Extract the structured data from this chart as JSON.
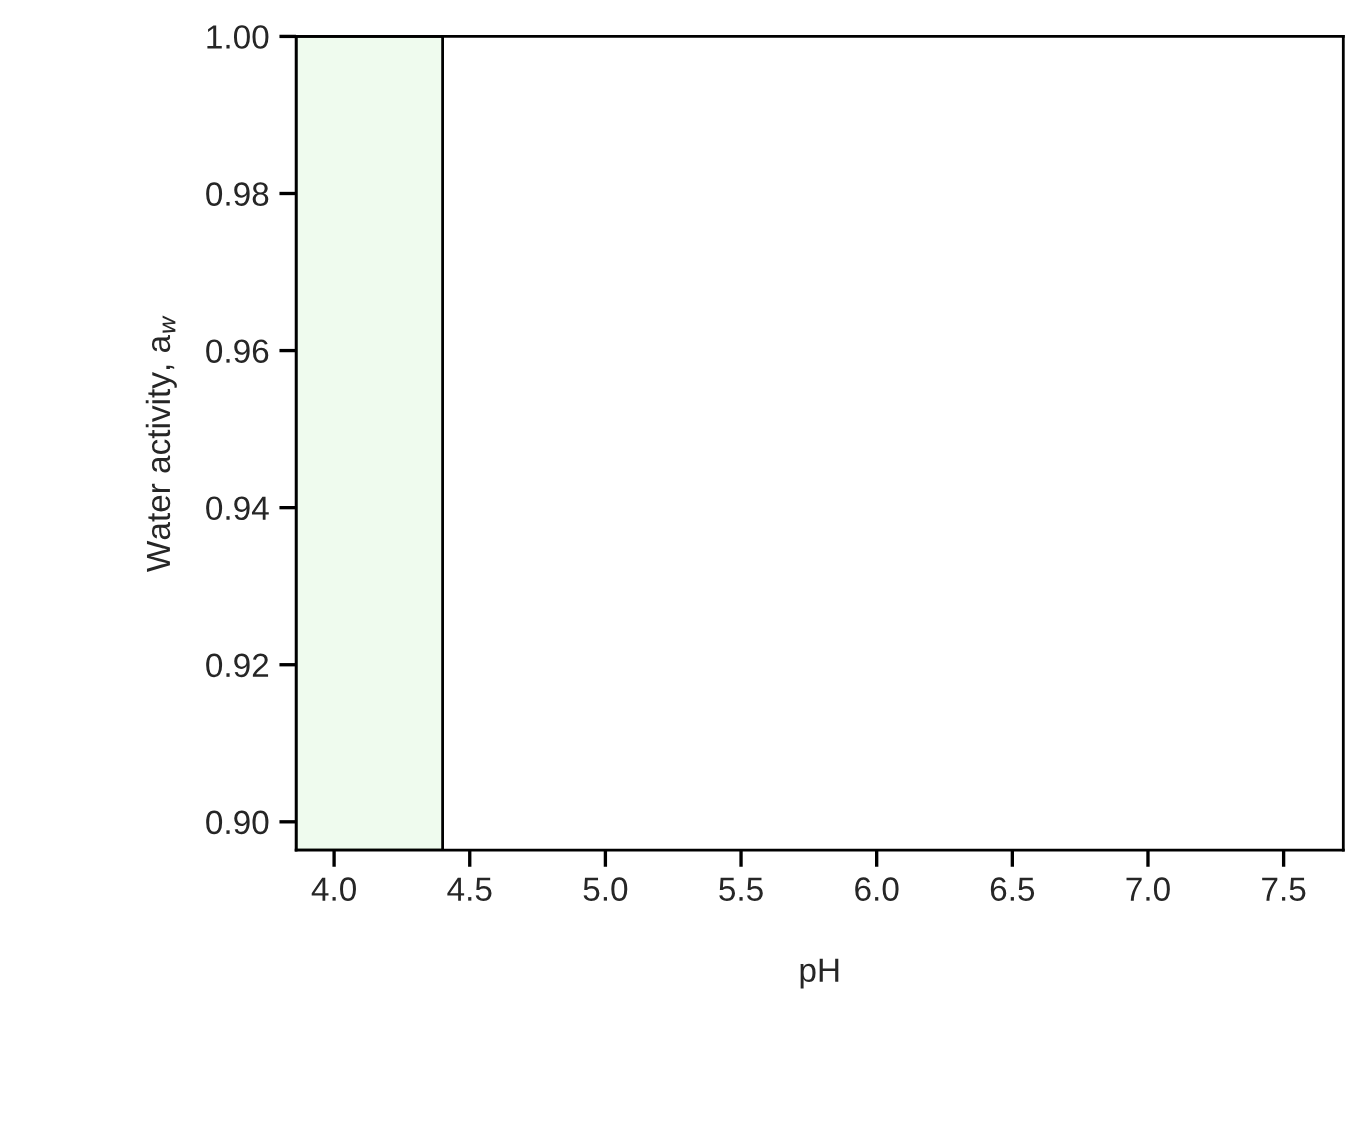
{
  "chart_data": {
    "type": "scatter",
    "xlabel": "pH",
    "ylabel": "Water activity, a$_{w}$",
    "xlim": [
      3.86,
      7.72
    ],
    "ylim": [
      0.8964,
      1.0
    ],
    "xticks": [
      {
        "value": 4,
        "label": "4.0"
      },
      {
        "value": 4.5,
        "label": "4.5"
      },
      {
        "value": 5,
        "label": "5.0"
      },
      {
        "value": 5.5,
        "label": "5.5"
      },
      {
        "value": 6,
        "label": "6.0"
      },
      {
        "value": 6.5,
        "label": "6.5"
      },
      {
        "value": 7,
        "label": "7.0"
      },
      {
        "value": 7.5,
        "label": "7.5"
      }
    ],
    "yticks": [
      {
        "value": 0.9,
        "label": "0.90"
      },
      {
        "value": 0.92,
        "label": "0.92"
      },
      {
        "value": 0.94,
        "label": "0.94"
      },
      {
        "value": 0.96,
        "label": "0.96"
      },
      {
        "value": 0.98,
        "label": "0.98"
      },
      {
        "value": 1.0,
        "label": "1.00"
      }
    ],
    "bands": [
      {
        "axis": "x",
        "from": 3.86,
        "to": 4.4,
        "color": "#effbee"
      }
    ]
  }
}
